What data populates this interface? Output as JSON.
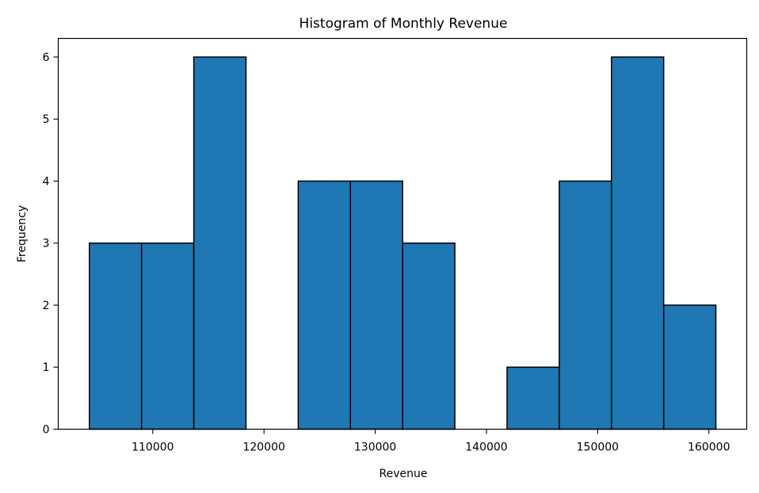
{
  "chart_data": {
    "type": "bar",
    "title": "Histogram of Monthly Revenue",
    "xlabel": "Revenue",
    "ylabel": "Frequency",
    "bin_edges": [
      104300,
      108994,
      113688,
      118382,
      123076,
      127770,
      132464,
      137158,
      141852,
      146546,
      151240,
      155934,
      160628
    ],
    "values": [
      3,
      3,
      6,
      0,
      4,
      4,
      3,
      0,
      1,
      4,
      6,
      2
    ],
    "xlim": [
      101500,
      163400
    ],
    "ylim": [
      0,
      6.3
    ],
    "xticks": [
      110000,
      120000,
      130000,
      140000,
      150000,
      160000
    ],
    "xtick_labels": [
      "110000",
      "120000",
      "130000",
      "140000",
      "150000",
      "160000"
    ],
    "yticks": [
      0,
      1,
      2,
      3,
      4,
      5,
      6
    ],
    "ytick_labels": [
      "0",
      "1",
      "2",
      "3",
      "4",
      "5",
      "6"
    ],
    "bar_color": "#1f77b4",
    "edge_color": "#000000",
    "grid": false,
    "legend": "none"
  }
}
